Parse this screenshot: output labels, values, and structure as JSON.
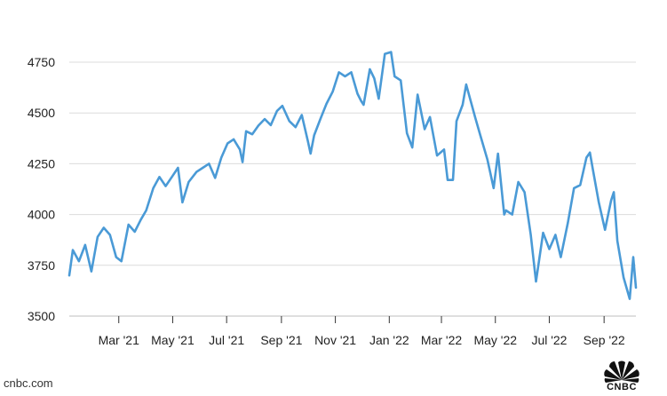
{
  "source": "cnbc.com",
  "logo_text": "CNBC",
  "chart_data": {
    "type": "line",
    "title": "",
    "xlabel": "",
    "ylabel": "",
    "ylim": [
      3500,
      4850
    ],
    "yticks": [
      3500,
      3750,
      4000,
      4250,
      4500,
      4750
    ],
    "xticks": [
      "Mar '21",
      "May '21",
      "Jul '21",
      "Sep '21",
      "Nov '21",
      "Jan '22",
      "Mar '22",
      "May '22",
      "Jul '22",
      "Sep '22"
    ],
    "grid": "horizontal",
    "line_color": "#4a9ad6",
    "x": [
      "2021-01-04",
      "2021-01-08",
      "2021-01-15",
      "2021-01-22",
      "2021-01-29",
      "2021-02-05",
      "2021-02-12",
      "2021-02-19",
      "2021-02-26",
      "2021-03-04",
      "2021-03-12",
      "2021-03-19",
      "2021-03-26",
      "2021-04-01",
      "2021-04-09",
      "2021-04-16",
      "2021-04-23",
      "2021-04-30",
      "2021-05-07",
      "2021-05-12",
      "2021-05-19",
      "2021-05-28",
      "2021-06-04",
      "2021-06-11",
      "2021-06-18",
      "2021-06-25",
      "2021-07-02",
      "2021-07-09",
      "2021-07-16",
      "2021-07-19",
      "2021-07-23",
      "2021-07-30",
      "2021-08-06",
      "2021-08-13",
      "2021-08-20",
      "2021-08-27",
      "2021-09-02",
      "2021-09-10",
      "2021-09-17",
      "2021-09-24",
      "2021-10-01",
      "2021-10-04",
      "2021-10-08",
      "2021-10-15",
      "2021-10-22",
      "2021-10-29",
      "2021-11-05",
      "2021-11-12",
      "2021-11-19",
      "2021-11-26",
      "2021-11-30",
      "2021-12-03",
      "2021-12-10",
      "2021-12-15",
      "2021-12-20",
      "2021-12-27",
      "2022-01-03",
      "2022-01-07",
      "2022-01-14",
      "2022-01-21",
      "2022-01-27",
      "2022-02-02",
      "2022-02-10",
      "2022-02-16",
      "2022-02-24",
      "2022-03-04",
      "2022-03-08",
      "2022-03-14",
      "2022-03-18",
      "2022-03-25",
      "2022-03-29",
      "2022-04-08",
      "2022-04-14",
      "2022-04-22",
      "2022-04-29",
      "2022-05-04",
      "2022-05-11",
      "2022-05-13",
      "2022-05-20",
      "2022-05-27",
      "2022-06-03",
      "2022-06-10",
      "2022-06-16",
      "2022-06-24",
      "2022-07-01",
      "2022-07-08",
      "2022-07-14",
      "2022-07-22",
      "2022-07-29",
      "2022-08-05",
      "2022-08-12",
      "2022-08-16",
      "2022-08-19",
      "2022-08-26",
      "2022-09-02",
      "2022-09-09",
      "2022-09-12",
      "2022-09-16",
      "2022-09-23",
      "2022-09-30",
      "2022-10-04",
      "2022-10-07"
    ],
    "y": [
      3700,
      3825,
      3770,
      3850,
      3720,
      3890,
      3935,
      3900,
      3790,
      3770,
      3950,
      3915,
      3975,
      4020,
      4130,
      4185,
      4140,
      4185,
      4230,
      4060,
      4160,
      4210,
      4230,
      4250,
      4180,
      4280,
      4350,
      4370,
      4320,
      4258,
      4410,
      4395,
      4438,
      4470,
      4440,
      4510,
      4535,
      4460,
      4430,
      4490,
      4360,
      4300,
      4390,
      4470,
      4545,
      4605,
      4700,
      4680,
      4700,
      4595,
      4560,
      4540,
      4715,
      4670,
      4570,
      4790,
      4800,
      4680,
      4660,
      4400,
      4330,
      4590,
      4420,
      4480,
      4290,
      4320,
      4170,
      4170,
      4460,
      4540,
      4640,
      4480,
      4390,
      4270,
      4130,
      4300,
      4000,
      4020,
      4000,
      4160,
      4110,
      3900,
      3670,
      3910,
      3830,
      3900,
      3790,
      3960,
      4130,
      4145,
      4280,
      4305,
      4230,
      4060,
      3925,
      4070,
      4110,
      3870,
      3690,
      3585,
      3790,
      3640
    ]
  }
}
